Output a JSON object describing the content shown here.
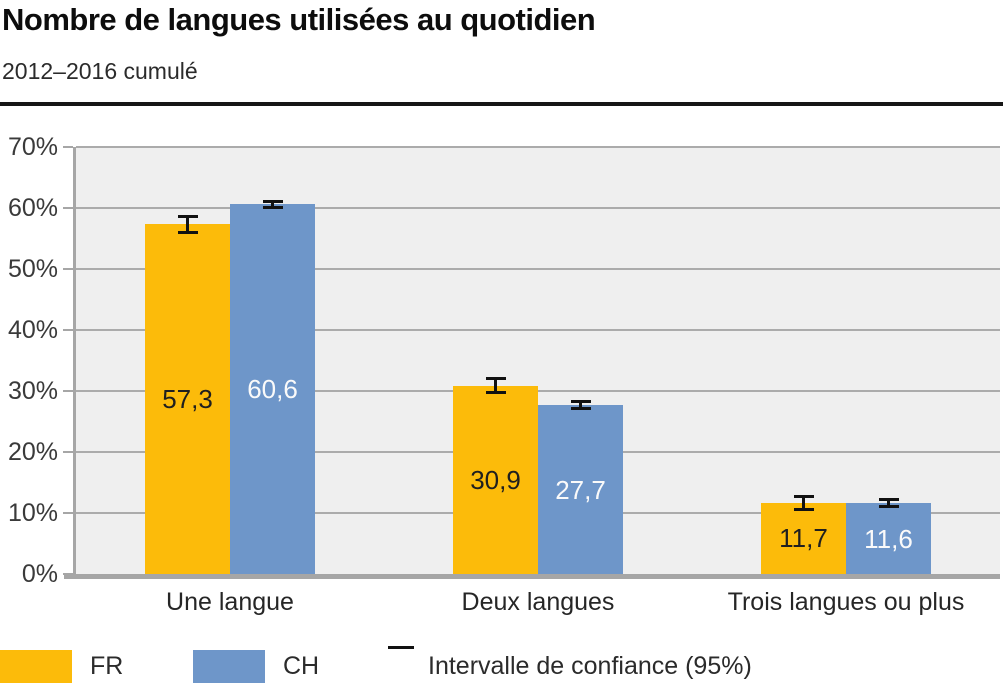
{
  "header": {
    "title": "Nombre de langues utilisées au quotidien",
    "subtitle": "2012–2016 cumulé"
  },
  "chart_data": {
    "type": "bar",
    "title": "Nombre de langues utilisées au quotidien",
    "subtitle": "2012–2016 cumulé",
    "categories": [
      "Une langue",
      "Deux langues",
      "Trois langues ou plus"
    ],
    "series": [
      {
        "name": "FR",
        "color": "#FCBB0A",
        "values": [
          57.3,
          30.9,
          11.7
        ],
        "value_labels": [
          "57,3",
          "30,9",
          "11,7"
        ],
        "ci_half_pct": [
          1.05,
          0.9,
          0.8
        ],
        "label_color": "#1f1f1f"
      },
      {
        "name": "CH",
        "color": "#6E96C9",
        "values": [
          60.6,
          27.7,
          11.6
        ],
        "value_labels": [
          "60,6",
          "27,7",
          "11,6"
        ],
        "ci_half_pct": [
          0.25,
          0.3,
          0.3
        ],
        "label_color": "#fafafa"
      }
    ],
    "xlabel": "",
    "ylabel": "",
    "ylim": [
      0,
      70
    ],
    "ytick_step": 10,
    "ytick_labels": [
      "0%",
      "10%",
      "20%",
      "30%",
      "40%",
      "50%",
      "60%",
      "70%"
    ],
    "grid": true,
    "plot_bg": "#efefef",
    "gridline_color": "#ababab",
    "axis_color": "#a6a6a6",
    "errorbar_color": "#111111",
    "legend_position": "bottom",
    "legend": [
      {
        "label": "FR",
        "swatch_color": "#FCBB0A",
        "swatch_type": "rect"
      },
      {
        "label": "CH",
        "swatch_color": "#6E96C9",
        "swatch_type": "rect"
      },
      {
        "label": "Intervalle de confiance (95%)",
        "swatch_type": "errorbar-icon"
      }
    ]
  }
}
